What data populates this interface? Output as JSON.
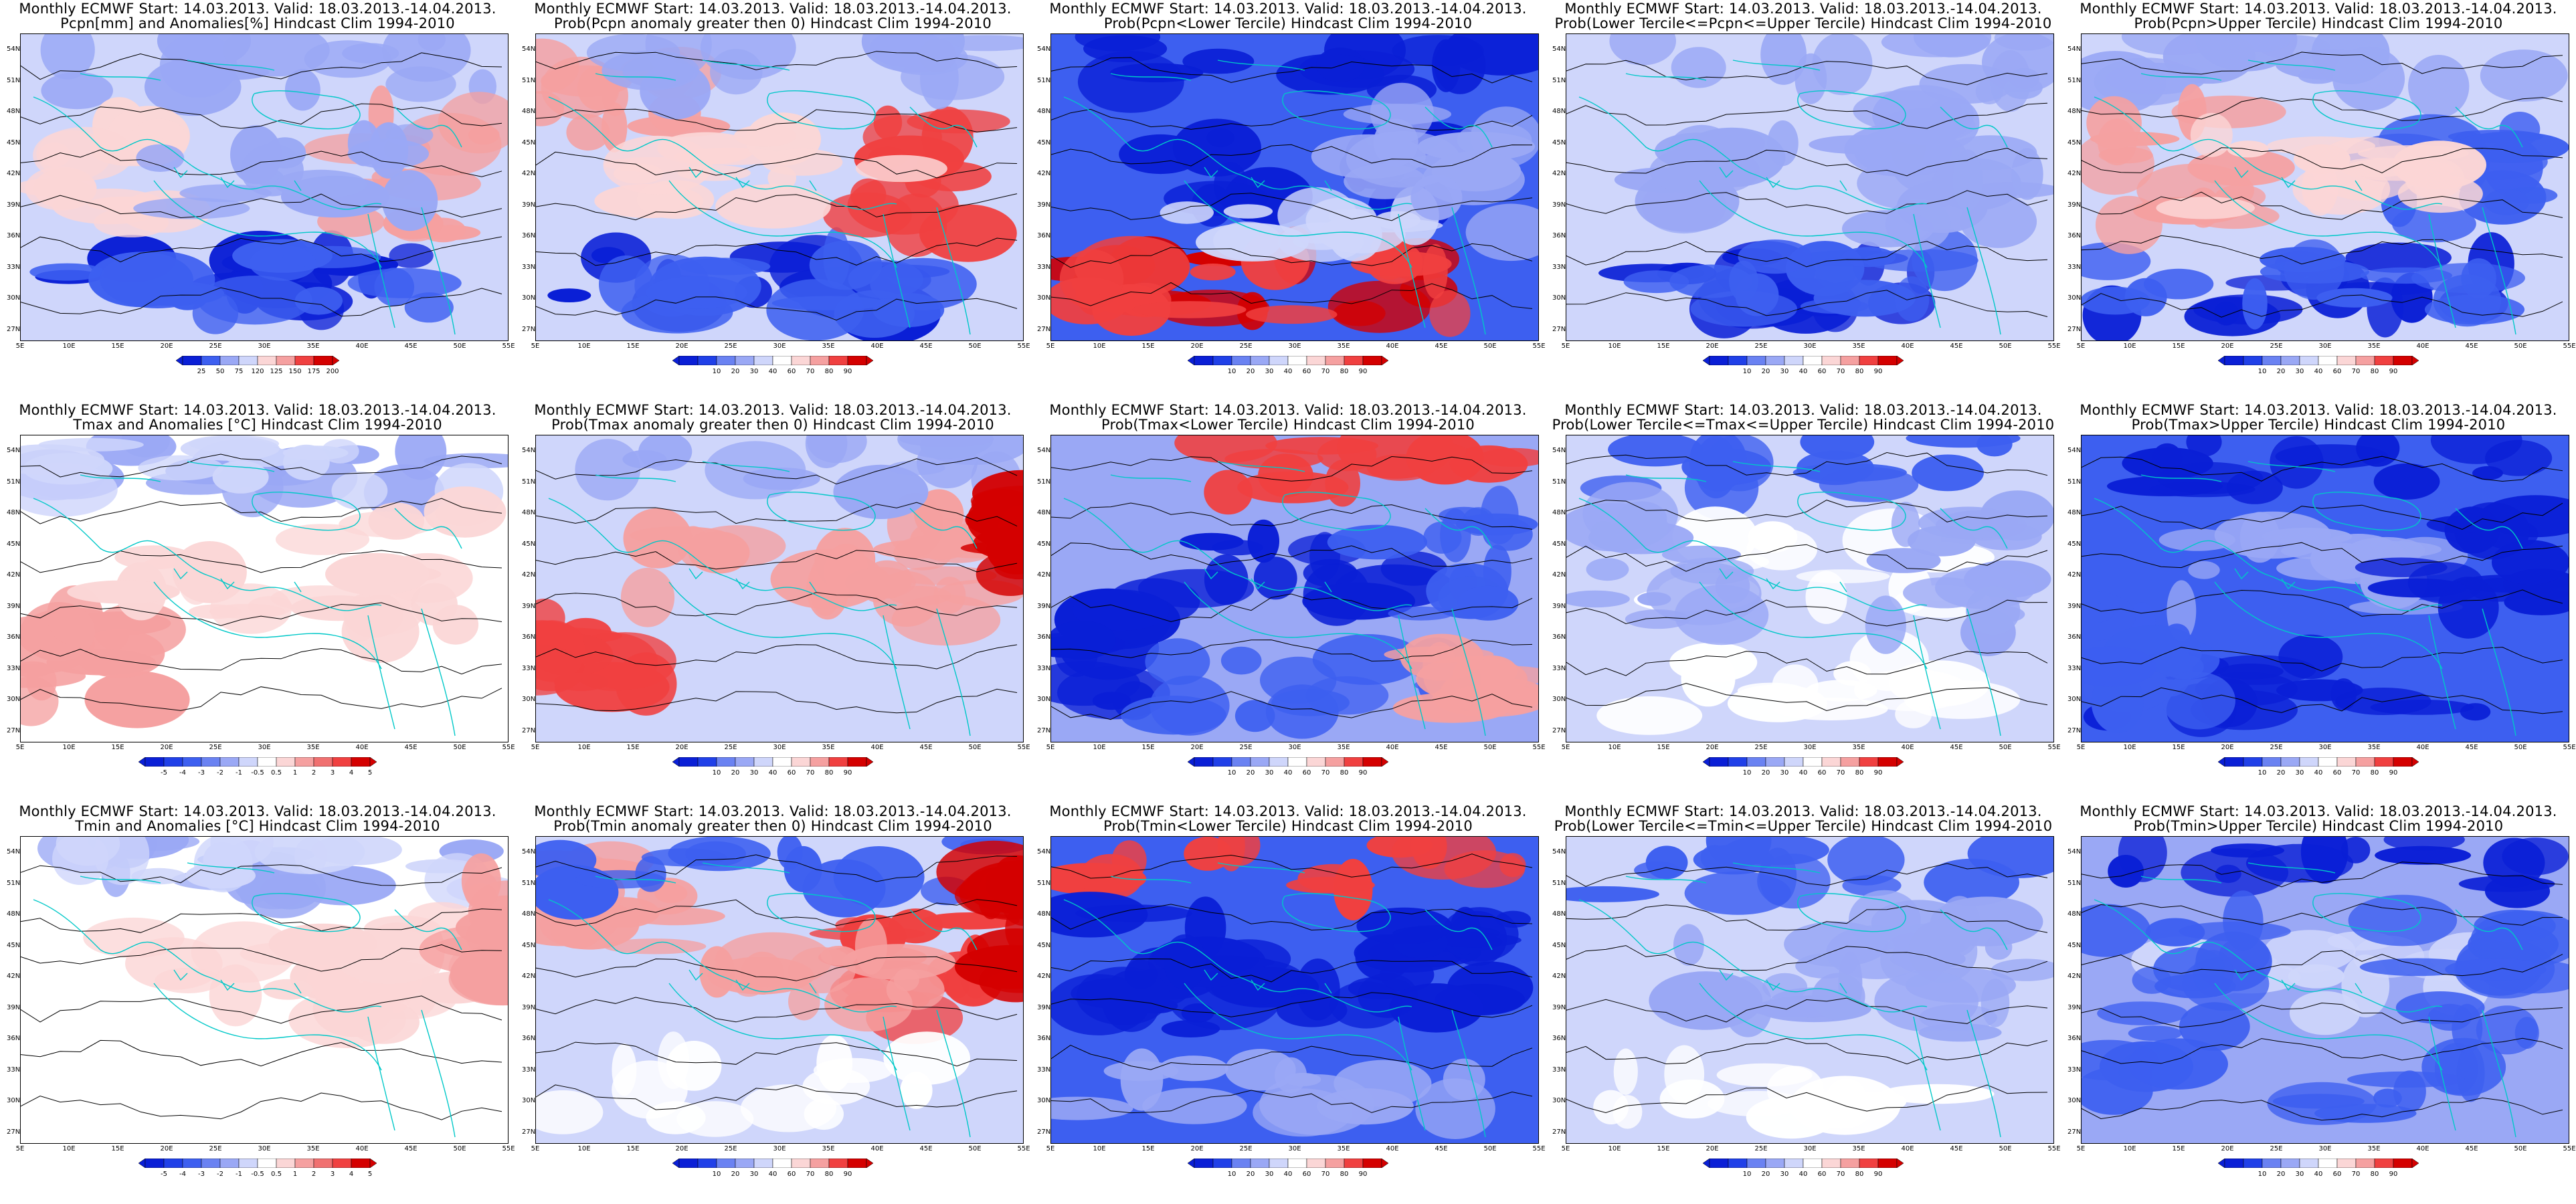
{
  "title_prefix": "Monthly ECMWF Start: 14.03.2013. Valid: 18.03.2013.-14.04.2013.",
  "lat_labels": [
    "54N",
    "51N",
    "48N",
    "45N",
    "42N",
    "39N",
    "36N",
    "33N",
    "30N",
    "27N"
  ],
  "lon_labels": [
    "5E",
    "10E",
    "15E",
    "20E",
    "25E",
    "30E",
    "35E",
    "40E",
    "45E",
    "50E",
    "55E"
  ],
  "colors": {
    "blue_dark": "#0a1fd6",
    "blue_mid": "#3d5ff0",
    "blue_light": "#9aa8f5",
    "blue_pale": "#cfd6fb",
    "red_dark": "#d40000",
    "red_mid": "#f04040",
    "red_light": "#f5a0a0",
    "red_pale": "#fbd6d6",
    "coast": "#00c8c8",
    "contour": "#000000"
  },
  "legends": {
    "anom_pcpn": {
      "labels": [
        "25",
        "50",
        "75",
        "120",
        "125",
        "150",
        "175",
        "200"
      ],
      "colors": [
        "#0a1fd6",
        "#3d5ff0",
        "#9aa8f5",
        "#cfd6fb",
        "#fbd6d6",
        "#f5a0a0",
        "#f04040",
        "#d40000"
      ]
    },
    "anom_temp": {
      "labels": [
        "-5",
        "-4",
        "-3",
        "-2",
        "-1",
        "-0.5",
        "0.5",
        "1",
        "2",
        "3",
        "4",
        "5"
      ],
      "colors": [
        "#0a1fd6",
        "#2040e8",
        "#3d5ff0",
        "#6a82f2",
        "#9aa8f5",
        "#cfd6fb",
        "#ffffff",
        "#fbd6d6",
        "#f5a0a0",
        "#f07070",
        "#f04040",
        "#d40000"
      ]
    },
    "prob": {
      "labels": [
        "10",
        "20",
        "30",
        "40",
        "60",
        "70",
        "80",
        "90"
      ],
      "colors": [
        "#0a1fd6",
        "#2040e8",
        "#6a82f2",
        "#9aa8f5",
        "#cfd6fb",
        "#ffffff",
        "#fbd6d6",
        "#f5a0a0",
        "#f04040",
        "#d40000"
      ]
    }
  },
  "panels": [
    {
      "id": "r0c0",
      "title2": "Pcpn[mm] and Anomalies[%] Hindcast Clim 1994-2010",
      "legend": "anom_pcpn",
      "scheme": "pcpn_anom"
    },
    {
      "id": "r0c1",
      "title2": "Prob(Pcpn anomaly greater then 0) Hindcast Clim 1994-2010",
      "legend": "prob",
      "scheme": "pcpn_pos"
    },
    {
      "id": "r0c2",
      "title2": "Prob(Pcpn<Lower Tercile) Hindcast Clim 1994-2010",
      "legend": "prob",
      "scheme": "pcpn_low"
    },
    {
      "id": "r0c3",
      "title2": "Prob(Lower Tercile<=Pcpn<=Upper Tercile) Hindcast Clim 1994-2010",
      "legend": "prob",
      "scheme": "pcpn_mid"
    },
    {
      "id": "r0c4",
      "title2": "Prob(Pcpn>Upper Tercile) Hindcast Clim 1994-2010",
      "legend": "prob",
      "scheme": "pcpn_up"
    },
    {
      "id": "r1c0",
      "title2": "Tmax and Anomalies [°C] Hindcast Clim 1994-2010",
      "legend": "anom_temp",
      "scheme": "tmax_anom"
    },
    {
      "id": "r1c1",
      "title2": "Prob(Tmax anomaly greater then 0) Hindcast Clim 1994-2010",
      "legend": "prob",
      "scheme": "tmax_pos"
    },
    {
      "id": "r1c2",
      "title2": "Prob(Tmax<Lower Tercile) Hindcast Clim 1994-2010",
      "legend": "prob",
      "scheme": "tmax_low"
    },
    {
      "id": "r1c3",
      "title2": "Prob(Lower Tercile<=Tmax<=Upper Tercile) Hindcast Clim 1994-2010",
      "legend": "prob",
      "scheme": "tmax_mid"
    },
    {
      "id": "r1c4",
      "title2": "Prob(Tmax>Upper Tercile) Hindcast Clim 1994-2010",
      "legend": "prob",
      "scheme": "tmax_up"
    },
    {
      "id": "r2c0",
      "title2": "Tmin and Anomalies [°C] Hindcast Clim 1994-2010",
      "legend": "anom_temp",
      "scheme": "tmin_anom"
    },
    {
      "id": "r2c1",
      "title2": "Prob(Tmin anomaly greater then 0) Hindcast Clim 1994-2010",
      "legend": "prob",
      "scheme": "tmin_pos"
    },
    {
      "id": "r2c2",
      "title2": "Prob(Tmin<Lower Tercile) Hindcast Clim 1994-2010",
      "legend": "prob",
      "scheme": "tmin_low"
    },
    {
      "id": "r2c3",
      "title2": "Prob(Lower Tercile<=Tmin<=Upper Tercile) Hindcast Clim 1994-2010",
      "legend": "prob",
      "scheme": "tmin_mid"
    },
    {
      "id": "r2c4",
      "title2": "Prob(Tmin>Upper Tercile) Hindcast Clim 1994-2010",
      "legend": "prob",
      "scheme": "tmin_up"
    }
  ]
}
